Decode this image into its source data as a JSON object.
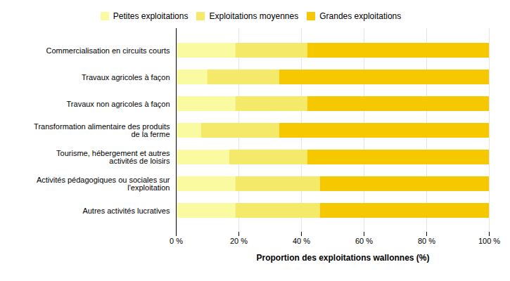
{
  "chart_data": {
    "type": "bar",
    "orientation": "horizontal",
    "stacked": true,
    "categories": [
      "Autres activités lucratives",
      "Activités pédagogiques ou sociales sur\nl'exploitation",
      "Tourisme, hébergement et autres\nactivités de loisirs",
      "Transformation alimentaire des produits\nde la ferme",
      "Travaux non agricoles à façon",
      "Travaux agricoles à façon",
      "Commercialisation en circuits courts"
    ],
    "series": [
      {
        "name": "Petites exploitations",
        "color": "#FAFAA0",
        "values": [
          19,
          19,
          17,
          8,
          19,
          10,
          19
        ]
      },
      {
        "name": "Exploitations moyennes",
        "color": "#F5E96A",
        "values": [
          27,
          27,
          25,
          25,
          23,
          23,
          23
        ]
      },
      {
        "name": "Grandes exploitations",
        "color": "#F5C800",
        "values": [
          54,
          54,
          58,
          67,
          58,
          67,
          58
        ]
      }
    ],
    "xlabel": "Proportion des exploitations wallonnes (%)",
    "xlim": [
      0,
      100
    ],
    "xticks": [
      {
        "value": 0,
        "label": "0 %"
      },
      {
        "value": 20,
        "label": "20 %"
      },
      {
        "value": 40,
        "label": "40 %"
      },
      {
        "value": 60,
        "label": "60 %"
      },
      {
        "value": 80,
        "label": "80 %"
      },
      {
        "value": 100,
        "label": "100 %"
      }
    ],
    "grid": true,
    "legend": "top"
  }
}
